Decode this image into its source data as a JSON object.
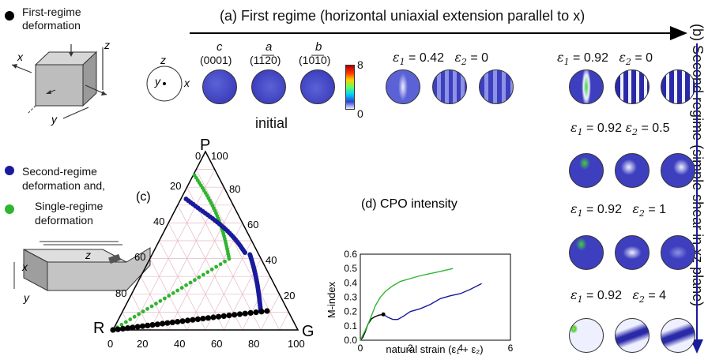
{
  "legend": {
    "first_regime": "First-regime\ndeformation",
    "second_regime": "Second-regime\ndeformation and,",
    "single_regime": "Single-regime\ndeformation",
    "colors": {
      "first": "#000000",
      "second": "#1a1a9c",
      "single": "#2fb52f"
    }
  },
  "panel_a": {
    "title": "(a) First regime (horizontal uniaxial extension parallel to x)",
    "planes": [
      {
        "axis": "c",
        "miller": "(0001)"
      },
      {
        "axis": "a",
        "miller": "(11̅2̅0)"
      },
      {
        "axis": "b",
        "miller": "(10̅1̅0)"
      }
    ],
    "initial_label": "initial",
    "colorbar": {
      "max": "8",
      "min": "0"
    },
    "axes_labels": {
      "z": "z",
      "x": "x",
      "y": "y"
    },
    "states": [
      {
        "e1_label": "ε",
        "e1_sub": "1",
        "e1": "= 0.42",
        "e2_label": "ε",
        "e2_sub": "2",
        "e2": "= 0"
      },
      {
        "e1_label": "ε",
        "e1_sub": "1",
        "e1": "= 0.92",
        "e2_label": "ε",
        "e2_sub": "2",
        "e2": "= 0"
      }
    ]
  },
  "panel_b": {
    "title": "(b) Second regime (simple shear in xz plane)",
    "states": [
      {
        "e1": "= 0.92",
        "e2": "= 0.5"
      },
      {
        "e1": "= 0.92",
        "e2": "= 1"
      },
      {
        "e1": "= 0.92",
        "e2": "= 4"
      }
    ]
  },
  "panel_c": {
    "title": "(c)",
    "vertices": {
      "top": "P",
      "left": "R",
      "right": "G"
    },
    "ticks": [
      "0",
      "20",
      "40",
      "60",
      "80",
      "100"
    ],
    "left_ticks": [
      "100",
      "80",
      "60",
      "40",
      "20"
    ],
    "right_ticks": [
      "80",
      "60",
      "40",
      "20"
    ]
  },
  "panel_d": {
    "title": "(d) CPO intensity",
    "ylabel": "M-index",
    "xlabel": "natural strain (ε₁ + ε₂)",
    "yticks": [
      "0.0",
      "0.1",
      "0.2",
      "0.3",
      "0.4",
      "0.5",
      "0.6"
    ],
    "xticks": [
      "0",
      "2",
      "4",
      "6"
    ]
  },
  "chart_data": {
    "type": "line",
    "title": "(d) CPO intensity",
    "xlabel": "natural strain (ε₁ + ε₂)",
    "ylabel": "M-index",
    "xlim": [
      0,
      6
    ],
    "ylim": [
      0,
      0.6
    ],
    "series": [
      {
        "color": "#000000",
        "x": [
          0,
          0.1,
          0.2,
          0.3,
          0.45,
          0.6,
          0.75,
          0.92
        ],
        "y": [
          0,
          0.02,
          0.06,
          0.11,
          0.15,
          0.165,
          0.175,
          0.18
        ]
      },
      {
        "color": "#1a1a9c",
        "x": [
          0.92,
          1.1,
          1.3,
          1.5,
          1.7,
          2.0,
          2.4,
          2.8,
          3.2,
          3.6,
          4.0,
          4.4,
          4.85
        ],
        "y": [
          0.18,
          0.16,
          0.145,
          0.145,
          0.165,
          0.2,
          0.22,
          0.25,
          0.29,
          0.31,
          0.325,
          0.355,
          0.395
        ]
      },
      {
        "color": "#2fb52f",
        "x": [
          0,
          0.2,
          0.4,
          0.6,
          0.8,
          1.0,
          1.3,
          1.6,
          2.0,
          2.4,
          2.8,
          3.2,
          3.7
        ],
        "y": [
          0,
          0.07,
          0.15,
          0.24,
          0.3,
          0.34,
          0.38,
          0.41,
          0.43,
          0.45,
          0.465,
          0.48,
          0.5
        ]
      }
    ]
  }
}
